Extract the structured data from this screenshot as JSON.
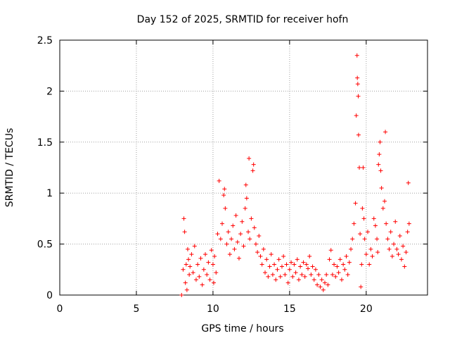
{
  "chart_data": {
    "type": "scatter",
    "title": "Day 152 of 2025, SRMTID for receiver hofn",
    "xlabel": "GPS time / hours",
    "ylabel": "SRMTID / TECUs",
    "xlim": [
      0,
      24
    ],
    "ylim": [
      0,
      2.5
    ],
    "xticks": [
      0,
      5,
      10,
      15,
      20
    ],
    "yticks": [
      0,
      0.5,
      1,
      1.5,
      2,
      2.5
    ],
    "grid": true,
    "marker": "+",
    "color": "#ff0000",
    "series": [
      {
        "name": "SRMTID",
        "points": [
          [
            7.95,
            0.0
          ],
          [
            8.05,
            0.25
          ],
          [
            8.1,
            0.75
          ],
          [
            8.15,
            0.62
          ],
          [
            8.2,
            0.12
          ],
          [
            8.25,
            0.3
          ],
          [
            8.3,
            0.05
          ],
          [
            8.35,
            0.45
          ],
          [
            8.4,
            0.35
          ],
          [
            8.45,
            0.2
          ],
          [
            8.5,
            0.28
          ],
          [
            8.6,
            0.4
          ],
          [
            8.7,
            0.22
          ],
          [
            8.8,
            0.48
          ],
          [
            8.9,
            0.15
          ],
          [
            9.0,
            0.3
          ],
          [
            9.1,
            0.18
          ],
          [
            9.2,
            0.36
          ],
          [
            9.3,
            0.1
          ],
          [
            9.4,
            0.25
          ],
          [
            9.5,
            0.4
          ],
          [
            9.6,
            0.2
          ],
          [
            9.7,
            0.32
          ],
          [
            9.8,
            0.15
          ],
          [
            9.9,
            0.44
          ],
          [
            10.0,
            0.3
          ],
          [
            10.05,
            0.12
          ],
          [
            10.1,
            0.38
          ],
          [
            10.2,
            0.22
          ],
          [
            10.3,
            0.6
          ],
          [
            10.4,
            1.12
          ],
          [
            10.5,
            0.55
          ],
          [
            10.6,
            0.7
          ],
          [
            10.7,
            0.98
          ],
          [
            10.75,
            1.04
          ],
          [
            10.8,
            0.85
          ],
          [
            10.9,
            0.5
          ],
          [
            11.0,
            0.62
          ],
          [
            11.1,
            0.4
          ],
          [
            11.2,
            0.55
          ],
          [
            11.3,
            0.68
          ],
          [
            11.4,
            0.45
          ],
          [
            11.5,
            0.78
          ],
          [
            11.6,
            0.52
          ],
          [
            11.7,
            0.36
          ],
          [
            11.8,
            0.6
          ],
          [
            11.9,
            0.72
          ],
          [
            12.0,
            0.48
          ],
          [
            12.1,
            0.85
          ],
          [
            12.15,
            1.08
          ],
          [
            12.2,
            0.95
          ],
          [
            12.3,
            0.62
          ],
          [
            12.35,
            1.34
          ],
          [
            12.4,
            0.55
          ],
          [
            12.5,
            0.75
          ],
          [
            12.6,
            1.22
          ],
          [
            12.65,
            1.28
          ],
          [
            12.7,
            0.66
          ],
          [
            12.8,
            0.5
          ],
          [
            12.9,
            0.42
          ],
          [
            13.0,
            0.58
          ],
          [
            13.1,
            0.38
          ],
          [
            13.2,
            0.3
          ],
          [
            13.3,
            0.45
          ],
          [
            13.4,
            0.22
          ],
          [
            13.5,
            0.35
          ],
          [
            13.6,
            0.18
          ],
          [
            13.7,
            0.28
          ],
          [
            13.8,
            0.4
          ],
          [
            13.9,
            0.2
          ],
          [
            14.0,
            0.3
          ],
          [
            14.1,
            0.15
          ],
          [
            14.2,
            0.25
          ],
          [
            14.3,
            0.35
          ],
          [
            14.4,
            0.18
          ],
          [
            14.5,
            0.28
          ],
          [
            14.6,
            0.38
          ],
          [
            14.7,
            0.2
          ],
          [
            14.8,
            0.3
          ],
          [
            14.9,
            0.12
          ],
          [
            15.0,
            0.25
          ],
          [
            15.1,
            0.32
          ],
          [
            15.2,
            0.18
          ],
          [
            15.3,
            0.3
          ],
          [
            15.4,
            0.22
          ],
          [
            15.5,
            0.35
          ],
          [
            15.6,
            0.15
          ],
          [
            15.7,
            0.28
          ],
          [
            15.8,
            0.2
          ],
          [
            15.9,
            0.32
          ],
          [
            16.0,
            0.18
          ],
          [
            16.1,
            0.3
          ],
          [
            16.2,
            0.26
          ],
          [
            16.3,
            0.38
          ],
          [
            16.4,
            0.2
          ],
          [
            16.5,
            0.28
          ],
          [
            16.6,
            0.15
          ],
          [
            16.7,
            0.25
          ],
          [
            16.8,
            0.1
          ],
          [
            16.9,
            0.2
          ],
          [
            17.0,
            0.08
          ],
          [
            17.1,
            0.15
          ],
          [
            17.2,
            0.05
          ],
          [
            17.3,
            0.12
          ],
          [
            17.4,
            0.2
          ],
          [
            17.5,
            0.1
          ],
          [
            17.6,
            0.35
          ],
          [
            17.7,
            0.44
          ],
          [
            17.8,
            0.2
          ],
          [
            17.9,
            0.3
          ],
          [
            18.0,
            0.18
          ],
          [
            18.1,
            0.28
          ],
          [
            18.2,
            0.22
          ],
          [
            18.3,
            0.35
          ],
          [
            18.4,
            0.15
          ],
          [
            18.5,
            0.3
          ],
          [
            18.6,
            0.25
          ],
          [
            18.7,
            0.38
          ],
          [
            18.8,
            0.2
          ],
          [
            18.9,
            0.32
          ],
          [
            19.0,
            0.45
          ],
          [
            19.1,
            0.55
          ],
          [
            19.2,
            0.7
          ],
          [
            19.3,
            0.9
          ],
          [
            19.35,
            1.76
          ],
          [
            19.4,
            2.35
          ],
          [
            19.42,
            2.13
          ],
          [
            19.45,
            2.07
          ],
          [
            19.48,
            1.95
          ],
          [
            19.5,
            1.57
          ],
          [
            19.55,
            1.25
          ],
          [
            19.6,
            0.6
          ],
          [
            19.65,
            0.08
          ],
          [
            19.7,
            0.3
          ],
          [
            19.75,
            0.85
          ],
          [
            19.8,
            1.25
          ],
          [
            19.85,
            0.75
          ],
          [
            19.9,
            0.55
          ],
          [
            20.0,
            0.4
          ],
          [
            20.1,
            0.62
          ],
          [
            20.2,
            0.3
          ],
          [
            20.3,
            0.45
          ],
          [
            20.4,
            0.38
          ],
          [
            20.5,
            0.75
          ],
          [
            20.6,
            0.68
          ],
          [
            20.7,
            0.55
          ],
          [
            20.75,
            0.42
          ],
          [
            20.8,
            1.28
          ],
          [
            20.85,
            1.38
          ],
          [
            20.9,
            1.5
          ],
          [
            20.95,
            1.22
          ],
          [
            21.0,
            1.05
          ],
          [
            21.1,
            0.85
          ],
          [
            21.2,
            0.92
          ],
          [
            21.25,
            1.6
          ],
          [
            21.3,
            0.7
          ],
          [
            21.4,
            0.55
          ],
          [
            21.5,
            0.45
          ],
          [
            21.6,
            0.62
          ],
          [
            21.7,
            0.38
          ],
          [
            21.8,
            0.5
          ],
          [
            21.9,
            0.72
          ],
          [
            22.0,
            0.45
          ],
          [
            22.1,
            0.4
          ],
          [
            22.2,
            0.58
          ],
          [
            22.3,
            0.35
          ],
          [
            22.4,
            0.48
          ],
          [
            22.5,
            0.28
          ],
          [
            22.6,
            0.42
          ],
          [
            22.7,
            0.62
          ],
          [
            22.75,
            1.1
          ],
          [
            22.8,
            0.7
          ]
        ]
      }
    ]
  }
}
